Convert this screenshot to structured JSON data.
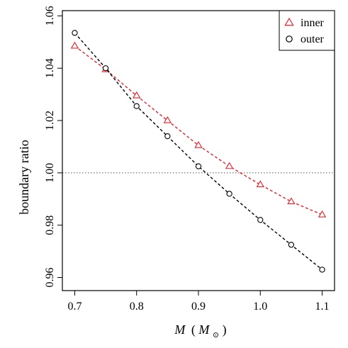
{
  "chart_data": {
    "type": "scatter",
    "title": "",
    "xlabel": {
      "main": "M",
      "paren_open": "(",
      "unit_main": "M",
      "unit_sub": "⊙",
      "paren_close": ")"
    },
    "ylabel": "boundary ratio",
    "xlim": [
      0.68,
      1.12
    ],
    "ylim": [
      0.955,
      1.062
    ],
    "x_ticks": [
      0.7,
      0.8,
      0.9,
      1.0,
      1.1
    ],
    "x_tick_labels": [
      "0.7",
      "0.8",
      "0.9",
      "1.0",
      "1.1"
    ],
    "y_ticks": [
      0.96,
      0.98,
      1.0,
      1.02,
      1.04,
      1.06
    ],
    "y_tick_labels": [
      "0.96",
      "0.98",
      "1.00",
      "1.02",
      "1.04",
      "1.06"
    ],
    "grid": false,
    "legend_position": "top-right",
    "reference_line": {
      "y": 1.0,
      "style": "dotted",
      "color": "#555555"
    },
    "series": [
      {
        "name": "inner",
        "marker": "triangle",
        "color": "#e8202a",
        "line_style": "dashed",
        "x": [
          0.7,
          0.75,
          0.8,
          0.85,
          0.9,
          0.95,
          1.0,
          1.05,
          1.1
        ],
        "y": [
          1.0485,
          1.0395,
          1.0295,
          1.02,
          1.0105,
          1.0025,
          0.9955,
          0.989,
          0.984
        ]
      },
      {
        "name": "outer",
        "marker": "circle",
        "color": "#000000",
        "line_style": "dashed",
        "x": [
          0.7,
          0.75,
          0.8,
          0.85,
          0.9,
          0.95,
          1.0,
          1.05,
          1.1
        ],
        "y": [
          1.0535,
          1.04,
          1.0255,
          1.014,
          1.0025,
          0.992,
          0.982,
          0.9725,
          0.963
        ]
      }
    ]
  }
}
